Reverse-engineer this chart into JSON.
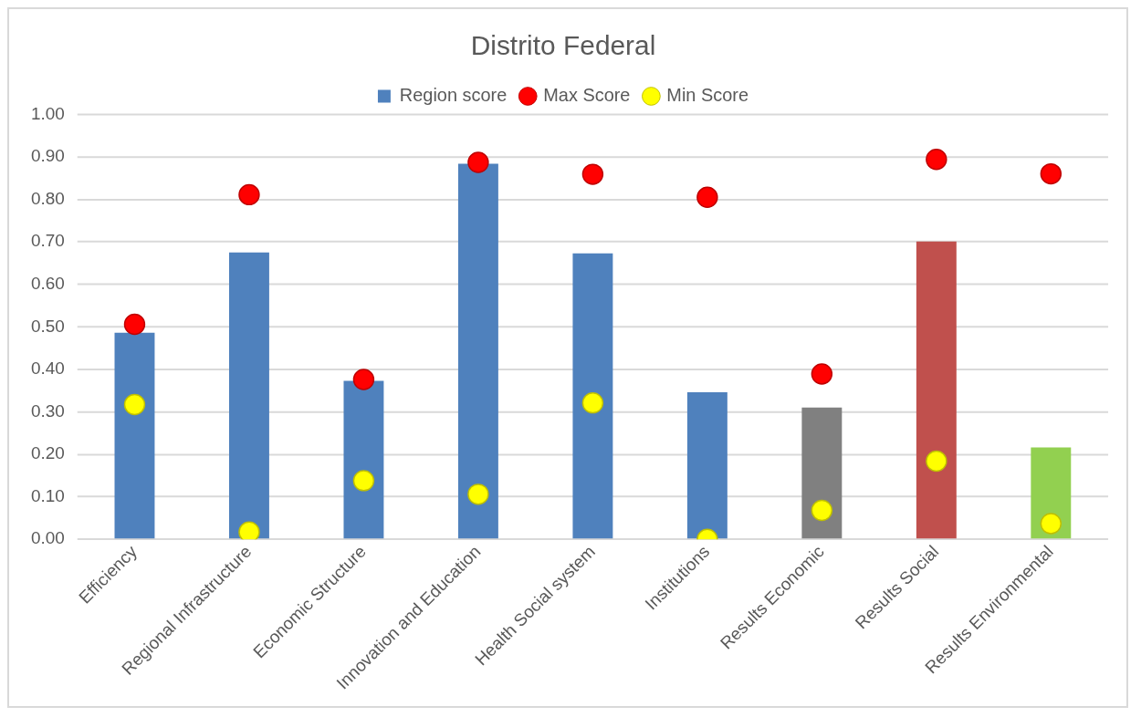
{
  "chart_data": {
    "type": "bar",
    "title": "Distrito Federal",
    "categories": [
      "Efficiency",
      "Regional Infrastructure",
      "Economic Structure",
      "Innovation and Education",
      "Health Social system",
      "Institutions",
      "Results Economic",
      "Results Social",
      "Results Environmental"
    ],
    "series": [
      {
        "name": "Region score",
        "color": "#4f81bd",
        "colors": [
          "#4f81bd",
          "#4f81bd",
          "#4f81bd",
          "#4f81bd",
          "#4f81bd",
          "#4f81bd",
          "#808080",
          "#c0504d",
          "#92d050"
        ],
        "values": [
          0.486,
          0.675,
          0.373,
          0.884,
          0.673,
          0.346,
          0.31,
          0.701,
          0.216
        ]
      },
      {
        "name": "Max Score",
        "type": "scatter",
        "color": "#ff0000",
        "x": [
          "Efficiency",
          "Regional Infrastructure",
          "Economic Structure",
          "Innovation and Education",
          "Health Social system",
          "Institutions",
          "Results Economic",
          "Results Social",
          "Results Environmental"
        ],
        "values": [
          0.506,
          0.811,
          0.376,
          0.887,
          0.859,
          0.805,
          0.389,
          0.894,
          0.86
        ]
      },
      {
        "name": "Min Score",
        "type": "scatter",
        "color": "#ffff00",
        "x": [
          "Efficiency",
          "Regional Infrastructure",
          "Economic Structure",
          "Innovation and Education",
          "Health Social system",
          "Institutions",
          "Results Economic",
          "Results Social",
          "Results Environmental"
        ],
        "values": [
          0.317,
          0.017,
          0.138,
          0.106,
          0.321,
          0.0,
          0.068,
          0.184,
          0.037
        ]
      }
    ],
    "ylim": [
      0,
      1
    ],
    "yticks": [
      {
        "value": 0,
        "label": "0.00"
      },
      {
        "value": 0.1,
        "label": "0.10"
      },
      {
        "value": 0.2,
        "label": "0.20"
      },
      {
        "value": 0.3,
        "label": "0.30"
      },
      {
        "value": 0.4,
        "label": "0.40"
      },
      {
        "value": 0.5,
        "label": "0.50"
      },
      {
        "value": 0.6,
        "label": "0.60"
      },
      {
        "value": 0.7,
        "label": "0.70"
      },
      {
        "value": 0.8,
        "label": "0.80"
      },
      {
        "value": 0.9,
        "label": "0.90"
      },
      {
        "value": 1,
        "label": "1.00"
      }
    ],
    "grid": "y",
    "legend": "top",
    "marker": "circle"
  }
}
